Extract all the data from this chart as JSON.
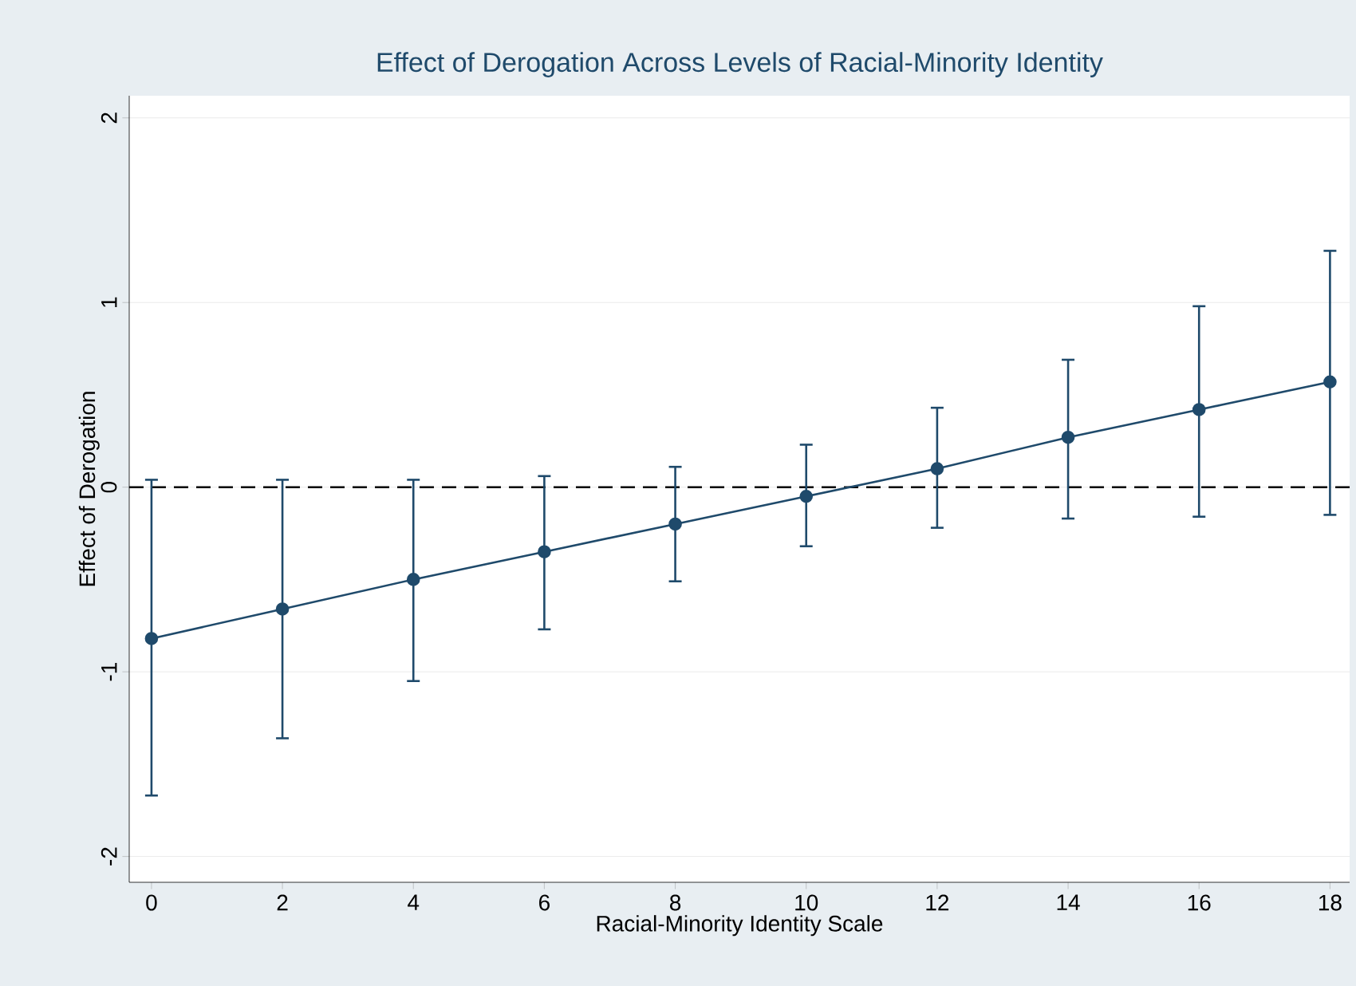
{
  "chart_data": {
    "type": "line",
    "title": "Effect of Derogation Across Levels of Racial-Minority Identity",
    "xlabel": "Racial-Minority Identity Scale",
    "ylabel": "Effect of Derogation",
    "x": [
      0,
      2,
      4,
      6,
      8,
      10,
      12,
      14,
      16,
      18
    ],
    "series": [
      {
        "color": "#1f4a6b",
        "values": [
          -0.82,
          -0.66,
          -0.5,
          -0.35,
          -0.2,
          -0.05,
          0.1,
          0.27,
          0.42,
          0.57
        ],
        "errors": [
          [
            -1.67,
            0.04
          ],
          [
            -1.36,
            0.04
          ],
          [
            -1.05,
            0.04
          ],
          [
            -0.77,
            0.06
          ],
          [
            -0.51,
            0.11
          ],
          [
            -0.32,
            0.23
          ],
          [
            -0.22,
            0.43
          ],
          [
            -0.17,
            0.69
          ],
          [
            -0.16,
            0.98
          ],
          [
            -0.15,
            1.28
          ]
        ]
      }
    ],
    "marker": "circle",
    "line_style": "solid",
    "grid": "y",
    "xlim": [
      -0.34,
      18.3
    ],
    "ylim": [
      -2.14,
      2.12
    ],
    "xticks": [
      0,
      2,
      4,
      6,
      8,
      10,
      12,
      14,
      16,
      18
    ],
    "yticks": [
      -2,
      -1,
      0,
      1,
      2
    ],
    "ref_lines": [
      {
        "axis": "y",
        "value": 0,
        "color": "#000000",
        "line_style": "dashed"
      }
    ]
  }
}
